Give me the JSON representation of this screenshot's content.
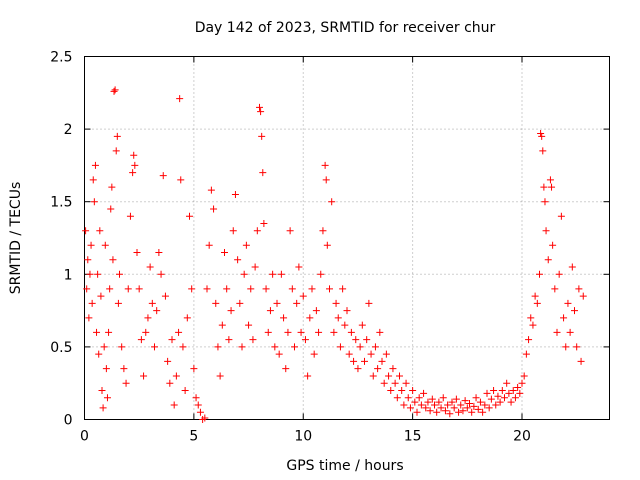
{
  "chart_data": {
    "type": "scatter",
    "title": "Day 142 of 2023, SRMTID for receiver chur",
    "xlabel": "GPS time / hours",
    "ylabel": "SRMTID / TECUs",
    "xlim": [
      0,
      24
    ],
    "ylim": [
      0,
      2.5
    ],
    "xticks": [
      0,
      5,
      10,
      15,
      20
    ],
    "xtick_labels": [
      "0",
      "5",
      "10",
      "15",
      "20"
    ],
    "yticks": [
      0,
      0.5,
      1,
      1.5,
      2,
      2.5
    ],
    "ytick_labels": [
      "0",
      "0.5",
      "1",
      "1.5",
      "2",
      "2.5"
    ],
    "grid": true,
    "marker": "+",
    "color": "#ff0000",
    "series": [
      {
        "name": "SRMTID",
        "points": [
          [
            0.05,
            1.3
          ],
          [
            0.1,
            0.9
          ],
          [
            0.15,
            1.1
          ],
          [
            0.2,
            0.7
          ],
          [
            0.25,
            1.0
          ],
          [
            0.3,
            1.2
          ],
          [
            0.35,
            0.8
          ],
          [
            0.4,
            1.65
          ],
          [
            0.45,
            1.5
          ],
          [
            0.5,
            1.75
          ],
          [
            0.55,
            0.6
          ],
          [
            0.6,
            1.0
          ],
          [
            0.65,
            0.45
          ],
          [
            0.7,
            1.3
          ],
          [
            0.75,
            0.85
          ],
          [
            0.8,
            0.2
          ],
          [
            0.85,
            0.08
          ],
          [
            0.9,
            0.5
          ],
          [
            0.95,
            1.2
          ],
          [
            1.0,
            0.35
          ],
          [
            1.05,
            0.15
          ],
          [
            1.1,
            0.6
          ],
          [
            1.15,
            0.9
          ],
          [
            1.2,
            1.45
          ],
          [
            1.25,
            1.6
          ],
          [
            1.3,
            1.1
          ],
          [
            1.35,
            2.26
          ],
          [
            1.4,
            2.27
          ],
          [
            1.45,
            1.85
          ],
          [
            1.5,
            1.95
          ],
          [
            1.55,
            0.8
          ],
          [
            1.6,
            1.0
          ],
          [
            1.7,
            0.5
          ],
          [
            1.8,
            0.35
          ],
          [
            1.9,
            0.25
          ],
          [
            2.0,
            0.9
          ],
          [
            2.1,
            1.4
          ],
          [
            2.2,
            1.7
          ],
          [
            2.25,
            1.82
          ],
          [
            2.3,
            1.75
          ],
          [
            2.4,
            1.15
          ],
          [
            2.5,
            0.9
          ],
          [
            2.6,
            0.55
          ],
          [
            2.7,
            0.3
          ],
          [
            2.8,
            0.6
          ],
          [
            2.9,
            0.7
          ],
          [
            3.0,
            1.05
          ],
          [
            3.1,
            0.8
          ],
          [
            3.2,
            0.5
          ],
          [
            3.3,
            0.75
          ],
          [
            3.4,
            1.15
          ],
          [
            3.5,
            1.0
          ],
          [
            3.6,
            1.68
          ],
          [
            3.7,
            0.85
          ],
          [
            3.8,
            0.4
          ],
          [
            3.9,
            0.25
          ],
          [
            4.0,
            0.55
          ],
          [
            4.1,
            0.1
          ],
          [
            4.2,
            0.3
          ],
          [
            4.3,
            0.6
          ],
          [
            4.35,
            2.21
          ],
          [
            4.4,
            1.65
          ],
          [
            4.5,
            0.5
          ],
          [
            4.6,
            0.2
          ],
          [
            4.7,
            0.7
          ],
          [
            4.8,
            1.4
          ],
          [
            4.9,
            0.9
          ],
          [
            5.0,
            0.35
          ],
          [
            5.1,
            0.15
          ],
          [
            5.2,
            0.1
          ],
          [
            5.3,
            0.05
          ],
          [
            5.4,
            0.0
          ],
          [
            5.5,
            0.01
          ],
          [
            5.6,
            0.9
          ],
          [
            5.7,
            1.2
          ],
          [
            5.8,
            1.58
          ],
          [
            5.9,
            1.45
          ],
          [
            6.0,
            0.8
          ],
          [
            6.1,
            0.5
          ],
          [
            6.2,
            0.3
          ],
          [
            6.3,
            0.65
          ],
          [
            6.4,
            1.15
          ],
          [
            6.5,
            0.9
          ],
          [
            6.6,
            0.55
          ],
          [
            6.7,
            0.75
          ],
          [
            6.8,
            1.3
          ],
          [
            6.9,
            1.55
          ],
          [
            7.0,
            1.1
          ],
          [
            7.1,
            0.8
          ],
          [
            7.2,
            0.5
          ],
          [
            7.3,
            1.0
          ],
          [
            7.4,
            1.2
          ],
          [
            7.5,
            0.65
          ],
          [
            7.6,
            0.9
          ],
          [
            7.7,
            0.55
          ],
          [
            7.8,
            1.05
          ],
          [
            7.9,
            1.3
          ],
          [
            8.0,
            2.15
          ],
          [
            8.05,
            2.12
          ],
          [
            8.1,
            1.95
          ],
          [
            8.15,
            1.7
          ],
          [
            8.2,
            1.35
          ],
          [
            8.3,
            0.9
          ],
          [
            8.4,
            0.6
          ],
          [
            8.5,
            0.75
          ],
          [
            8.6,
            1.0
          ],
          [
            8.7,
            0.5
          ],
          [
            8.8,
            0.8
          ],
          [
            8.9,
            0.45
          ],
          [
            9.0,
            1.0
          ],
          [
            9.1,
            0.7
          ],
          [
            9.2,
            0.35
          ],
          [
            9.3,
            0.6
          ],
          [
            9.4,
            1.3
          ],
          [
            9.5,
            0.9
          ],
          [
            9.6,
            0.5
          ],
          [
            9.7,
            0.8
          ],
          [
            9.8,
            1.05
          ],
          [
            9.9,
            0.6
          ],
          [
            10.0,
            0.85
          ],
          [
            10.1,
            0.55
          ],
          [
            10.2,
            0.3
          ],
          [
            10.3,
            0.7
          ],
          [
            10.4,
            0.9
          ],
          [
            10.5,
            0.45
          ],
          [
            10.6,
            0.75
          ],
          [
            10.7,
            0.6
          ],
          [
            10.8,
            1.0
          ],
          [
            10.9,
            1.3
          ],
          [
            11.0,
            1.75
          ],
          [
            11.05,
            1.65
          ],
          [
            11.1,
            1.2
          ],
          [
            11.2,
            0.9
          ],
          [
            11.3,
            1.5
          ],
          [
            11.4,
            0.6
          ],
          [
            11.5,
            0.8
          ],
          [
            11.6,
            0.7
          ],
          [
            11.7,
            0.5
          ],
          [
            11.8,
            0.9
          ],
          [
            11.9,
            0.65
          ],
          [
            12.0,
            0.75
          ],
          [
            12.1,
            0.45
          ],
          [
            12.2,
            0.6
          ],
          [
            12.3,
            0.4
          ],
          [
            12.4,
            0.55
          ],
          [
            12.5,
            0.35
          ],
          [
            12.6,
            0.5
          ],
          [
            12.7,
            0.65
          ],
          [
            12.8,
            0.4
          ],
          [
            12.9,
            0.55
          ],
          [
            13.0,
            0.8
          ],
          [
            13.1,
            0.45
          ],
          [
            13.2,
            0.3
          ],
          [
            13.3,
            0.5
          ],
          [
            13.4,
            0.35
          ],
          [
            13.5,
            0.6
          ],
          [
            13.6,
            0.4
          ],
          [
            13.7,
            0.25
          ],
          [
            13.8,
            0.45
          ],
          [
            13.9,
            0.3
          ],
          [
            14.0,
            0.2
          ],
          [
            14.1,
            0.35
          ],
          [
            14.2,
            0.25
          ],
          [
            14.3,
            0.15
          ],
          [
            14.4,
            0.3
          ],
          [
            14.5,
            0.2
          ],
          [
            14.6,
            0.1
          ],
          [
            14.7,
            0.25
          ],
          [
            14.8,
            0.15
          ],
          [
            14.9,
            0.08
          ],
          [
            15.0,
            0.2
          ],
          [
            15.1,
            0.12
          ],
          [
            15.2,
            0.05
          ],
          [
            15.3,
            0.15
          ],
          [
            15.4,
            0.1
          ],
          [
            15.5,
            0.18
          ],
          [
            15.6,
            0.08
          ],
          [
            15.7,
            0.12
          ],
          [
            15.8,
            0.06
          ],
          [
            15.9,
            0.14
          ],
          [
            16.0,
            0.1
          ],
          [
            16.1,
            0.05
          ],
          [
            16.2,
            0.12
          ],
          [
            16.3,
            0.08
          ],
          [
            16.4,
            0.15
          ],
          [
            16.5,
            0.06
          ],
          [
            16.6,
            0.1
          ],
          [
            16.7,
            0.04
          ],
          [
            16.8,
            0.12
          ],
          [
            16.9,
            0.08
          ],
          [
            17.0,
            0.14
          ],
          [
            17.1,
            0.05
          ],
          [
            17.2,
            0.1
          ],
          [
            17.3,
            0.06
          ],
          [
            17.4,
            0.13
          ],
          [
            17.5,
            0.08
          ],
          [
            17.6,
            0.11
          ],
          [
            17.7,
            0.05
          ],
          [
            17.8,
            0.09
          ],
          [
            17.9,
            0.15
          ],
          [
            18.0,
            0.07
          ],
          [
            18.1,
            0.12
          ],
          [
            18.2,
            0.05
          ],
          [
            18.3,
            0.1
          ],
          [
            18.4,
            0.18
          ],
          [
            18.5,
            0.08
          ],
          [
            18.6,
            0.14
          ],
          [
            18.7,
            0.2
          ],
          [
            18.8,
            0.1
          ],
          [
            18.9,
            0.16
          ],
          [
            19.0,
            0.12
          ],
          [
            19.1,
            0.2
          ],
          [
            19.2,
            0.15
          ],
          [
            19.3,
            0.25
          ],
          [
            19.4,
            0.18
          ],
          [
            19.5,
            0.12
          ],
          [
            19.6,
            0.2
          ],
          [
            19.7,
            0.15
          ],
          [
            19.8,
            0.22
          ],
          [
            19.9,
            0.18
          ],
          [
            20.0,
            0.25
          ],
          [
            20.1,
            0.3
          ],
          [
            20.2,
            0.45
          ],
          [
            20.3,
            0.55
          ],
          [
            20.4,
            0.7
          ],
          [
            20.5,
            0.65
          ],
          [
            20.6,
            0.85
          ],
          [
            20.7,
            0.8
          ],
          [
            20.8,
            1.0
          ],
          [
            20.85,
            1.97
          ],
          [
            20.9,
            1.95
          ],
          [
            20.95,
            1.85
          ],
          [
            21.0,
            1.6
          ],
          [
            21.05,
            1.5
          ],
          [
            21.1,
            1.3
          ],
          [
            21.2,
            1.1
          ],
          [
            21.3,
            1.65
          ],
          [
            21.35,
            1.6
          ],
          [
            21.4,
            1.2
          ],
          [
            21.5,
            0.9
          ],
          [
            21.6,
            0.6
          ],
          [
            21.7,
            1.0
          ],
          [
            21.8,
            1.4
          ],
          [
            21.9,
            0.7
          ],
          [
            22.0,
            0.5
          ],
          [
            22.1,
            0.8
          ],
          [
            22.2,
            0.6
          ],
          [
            22.3,
            1.05
          ],
          [
            22.4,
            0.75
          ],
          [
            22.5,
            0.5
          ],
          [
            22.6,
            0.9
          ],
          [
            22.7,
            0.4
          ],
          [
            22.8,
            0.85
          ]
        ]
      }
    ]
  }
}
